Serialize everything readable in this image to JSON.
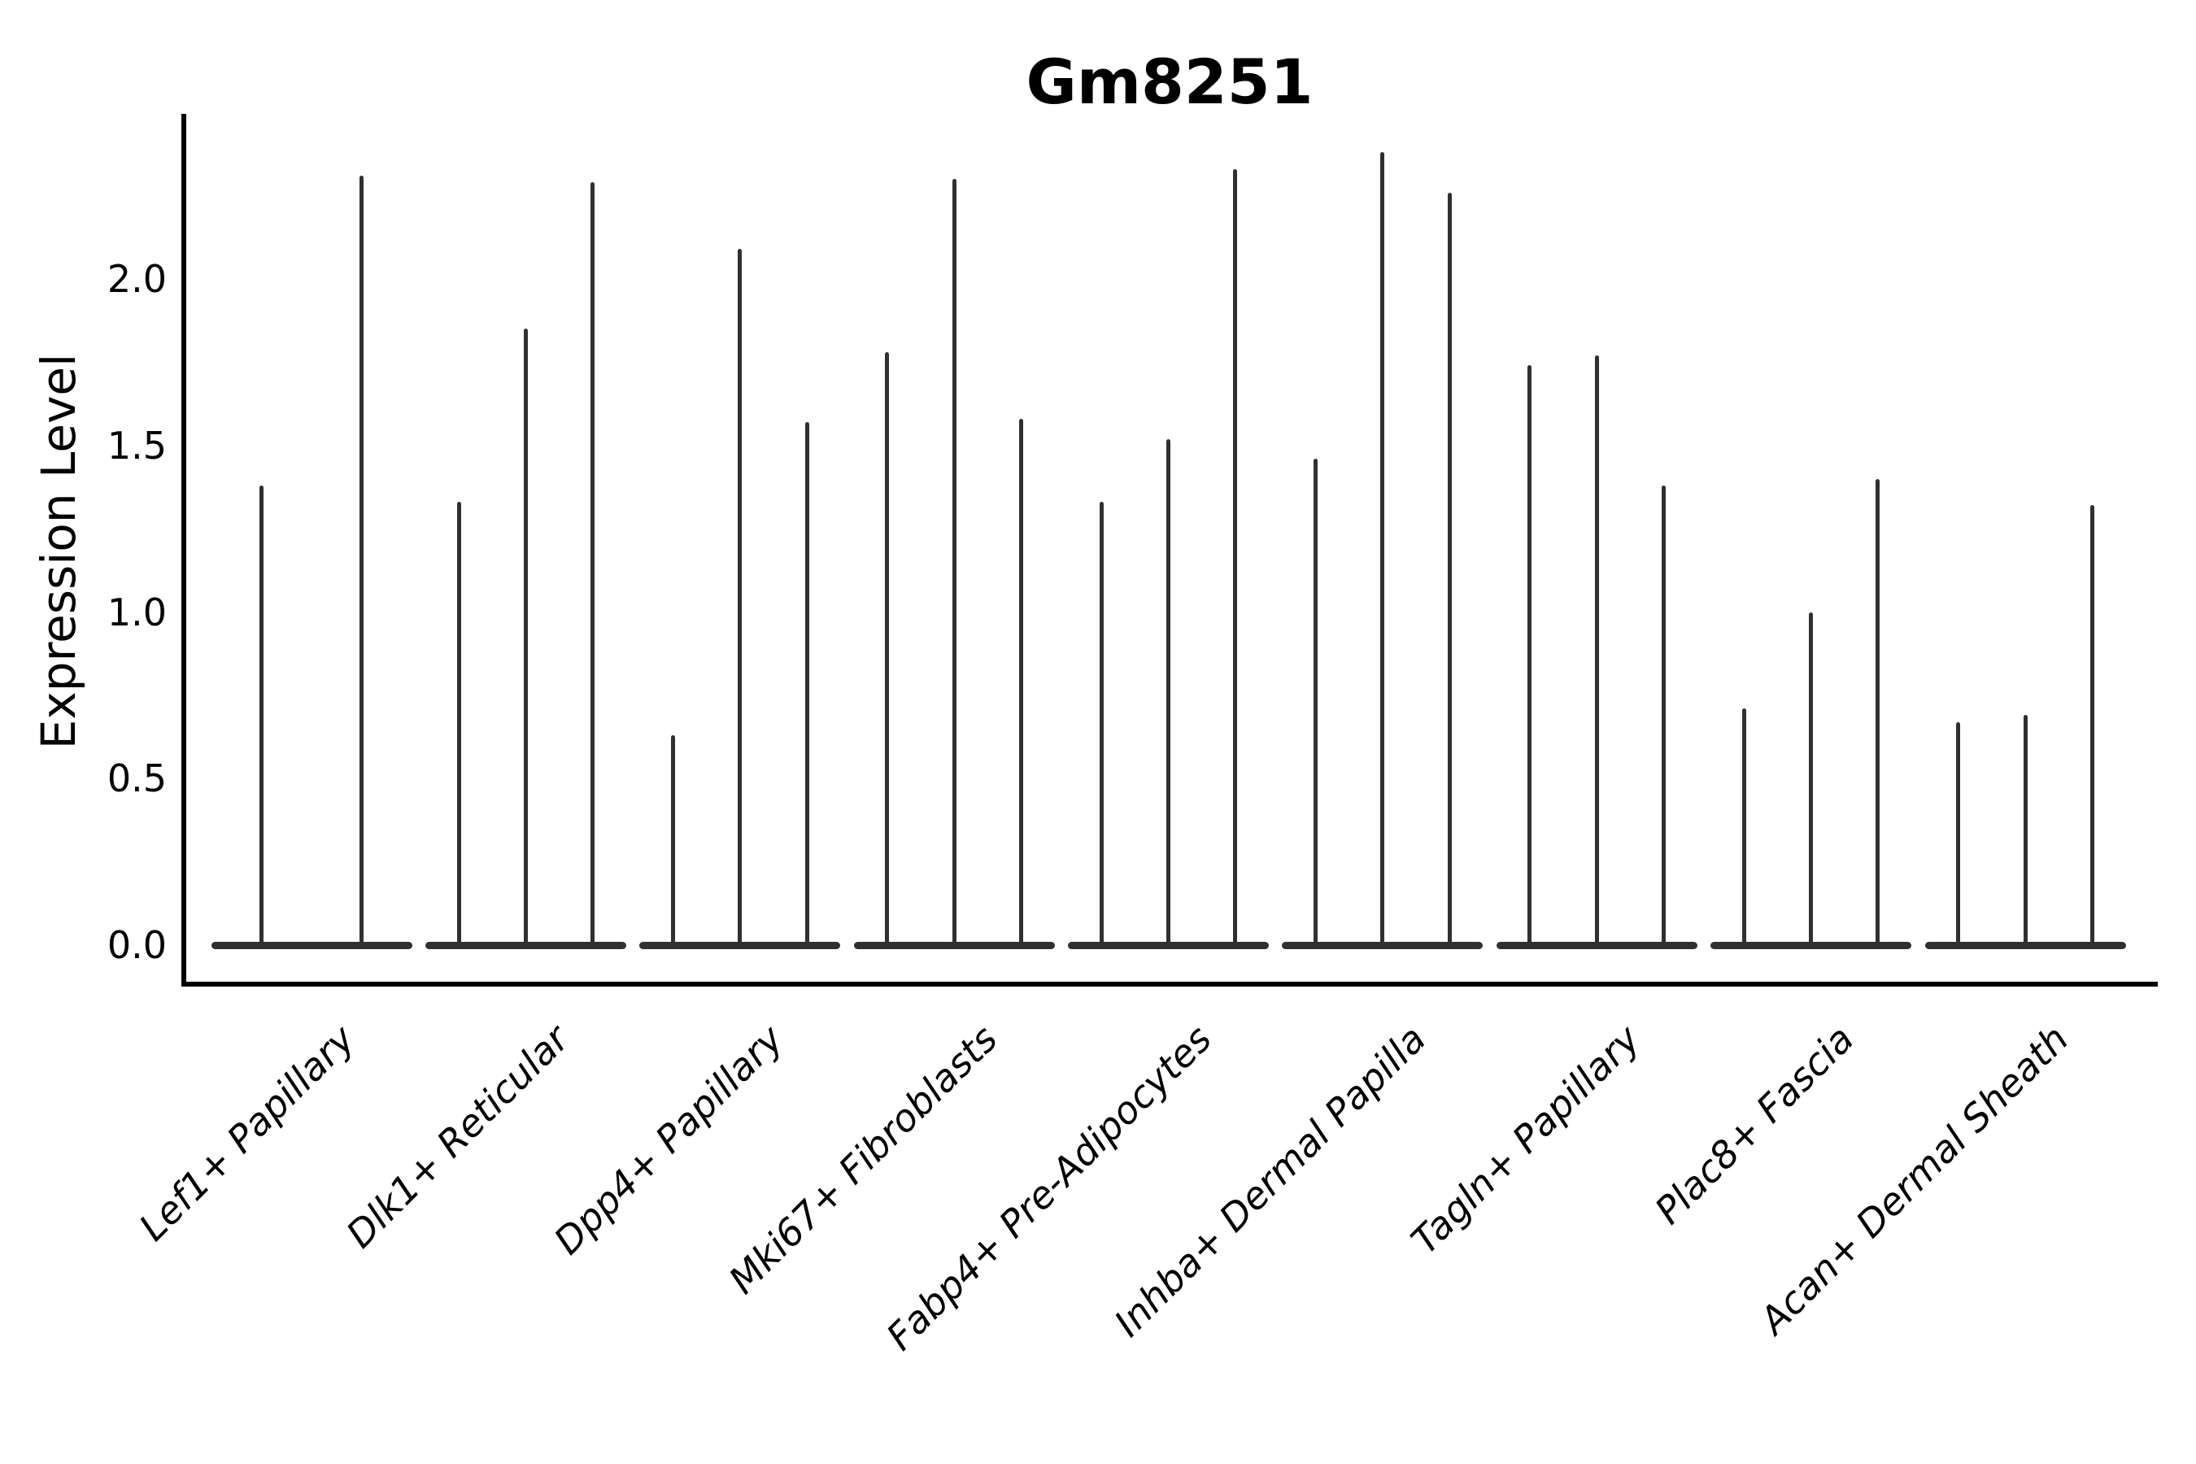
{
  "chart_data": {
    "type": "violin",
    "title": "Gm8251",
    "xlabel": "",
    "ylabel": "Expression Level",
    "y_ticks": [
      0.0,
      0.5,
      1.0,
      1.5,
      2.0
    ],
    "y_tick_labels": [
      "0.0",
      "0.5",
      "1.0",
      "1.5",
      "2.0"
    ],
    "ylim": [
      -0.12,
      2.5
    ],
    "grid": false,
    "legend": "none",
    "style_note": "Seurat-style single-gene violin plot; expression mass sits at 0 (flat wide base per category) with 2-3 razor-thin violins per category whose tails spike up to the listed maxima.",
    "categories": [
      "Lef1+ Papillary",
      "Dlk1+ Reticular",
      "Dpp4+ Papillary",
      "Mki67+ Fibroblasts",
      "Fabp4+ Pre-Adipocytes",
      "Inhba+ Dermal Papilla",
      "Tagln+ Papillary",
      "Plac8+ Fascia",
      "Acan+ Dermal Sheath"
    ],
    "violins": [
      {
        "category": "Lef1+ Papillary",
        "spike_maxima": [
          1.38,
          2.31
        ]
      },
      {
        "category": "Dlk1+ Reticular",
        "spike_maxima": [
          1.33,
          1.85,
          2.29
        ]
      },
      {
        "category": "Dpp4+ Papillary",
        "spike_maxima": [
          0.63,
          2.09,
          1.57
        ]
      },
      {
        "category": "Mki67+ Fibroblasts",
        "spike_maxima": [
          1.78,
          2.3,
          1.58
        ]
      },
      {
        "category": "Fabp4+ Pre-Adipocytes",
        "spike_maxima": [
          1.33,
          1.52,
          2.33
        ]
      },
      {
        "category": "Inhba+ Dermal Papilla",
        "spike_maxima": [
          1.46,
          2.38,
          2.26
        ]
      },
      {
        "category": "Tagln+ Papillary",
        "spike_maxima": [
          1.74,
          1.77,
          1.38
        ]
      },
      {
        "category": "Plac8+ Fascia",
        "spike_maxima": [
          0.71,
          1.0,
          1.4
        ]
      },
      {
        "category": "Acan+ Dermal Sheath",
        "spike_maxima": [
          0.67,
          0.69,
          1.32
        ]
      }
    ],
    "colors": {
      "violin": "#303030",
      "axis": "#000000",
      "background": "#ffffff"
    }
  }
}
